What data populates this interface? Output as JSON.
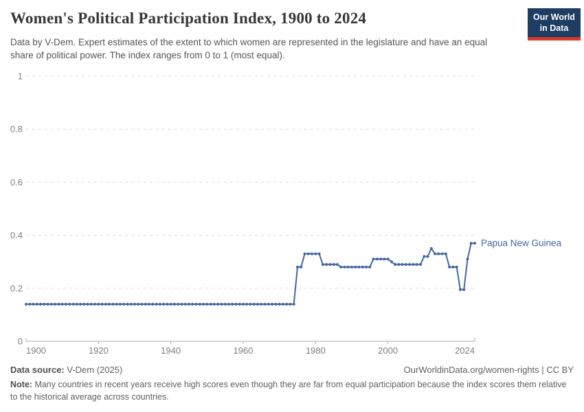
{
  "header": {
    "title": "Women's Political Participation Index, 1900 to 2024",
    "subtitle": "Data by V-Dem. Expert estimates of the extent to which women are represented in the legislature and have an equal share of political power. The index ranges from 0 to 1 (most equal).",
    "logo_line1": "Our World",
    "logo_line2": "in Data",
    "logo_bg_color": "#1d3d63",
    "logo_accent_color": "#d93a2d"
  },
  "chart_data": {
    "type": "line",
    "title": "Women's Political Participation Index, 1900 to 2024",
    "xlabel": "",
    "ylabel": "",
    "xlim": [
      1900,
      2024
    ],
    "ylim": [
      0,
      1
    ],
    "x_ticks": [
      1900,
      1920,
      1940,
      1960,
      1980,
      2000,
      2024
    ],
    "y_ticks": [
      0,
      0.2,
      0.4,
      0.6,
      0.8,
      1
    ],
    "grid": "horizontal-dashed",
    "legend_position": "end-of-line-label",
    "line_color": "#4266a5",
    "grid_color": "#dcdcdc",
    "axis_color": "#a9a9a9",
    "tick_label_color": "#7e7e7e",
    "series": [
      {
        "name": "Papua New Guinea",
        "x": [
          1900,
          1901,
          1902,
          1903,
          1904,
          1905,
          1906,
          1907,
          1908,
          1909,
          1910,
          1911,
          1912,
          1913,
          1914,
          1915,
          1916,
          1917,
          1918,
          1919,
          1920,
          1921,
          1922,
          1923,
          1924,
          1925,
          1926,
          1927,
          1928,
          1929,
          1930,
          1931,
          1932,
          1933,
          1934,
          1935,
          1936,
          1937,
          1938,
          1939,
          1940,
          1941,
          1942,
          1943,
          1944,
          1945,
          1946,
          1947,
          1948,
          1949,
          1950,
          1951,
          1952,
          1953,
          1954,
          1955,
          1956,
          1957,
          1958,
          1959,
          1960,
          1961,
          1962,
          1963,
          1964,
          1965,
          1966,
          1967,
          1968,
          1969,
          1970,
          1971,
          1972,
          1973,
          1974,
          1975,
          1976,
          1977,
          1978,
          1979,
          1980,
          1981,
          1982,
          1983,
          1984,
          1985,
          1986,
          1987,
          1988,
          1989,
          1990,
          1991,
          1992,
          1993,
          1994,
          1995,
          1996,
          1997,
          1998,
          1999,
          2000,
          2001,
          2002,
          2003,
          2004,
          2005,
          2006,
          2007,
          2008,
          2009,
          2010,
          2011,
          2012,
          2013,
          2014,
          2015,
          2016,
          2017,
          2018,
          2019,
          2020,
          2021,
          2022,
          2023,
          2024
        ],
        "values": [
          0.14,
          0.14,
          0.14,
          0.14,
          0.14,
          0.14,
          0.14,
          0.14,
          0.14,
          0.14,
          0.14,
          0.14,
          0.14,
          0.14,
          0.14,
          0.14,
          0.14,
          0.14,
          0.14,
          0.14,
          0.14,
          0.14,
          0.14,
          0.14,
          0.14,
          0.14,
          0.14,
          0.14,
          0.14,
          0.14,
          0.14,
          0.14,
          0.14,
          0.14,
          0.14,
          0.14,
          0.14,
          0.14,
          0.14,
          0.14,
          0.14,
          0.14,
          0.14,
          0.14,
          0.14,
          0.14,
          0.14,
          0.14,
          0.14,
          0.14,
          0.14,
          0.14,
          0.14,
          0.14,
          0.14,
          0.14,
          0.14,
          0.14,
          0.14,
          0.14,
          0.14,
          0.14,
          0.14,
          0.14,
          0.14,
          0.14,
          0.14,
          0.14,
          0.14,
          0.14,
          0.14,
          0.14,
          0.14,
          0.14,
          0.14,
          0.28,
          0.28,
          0.33,
          0.33,
          0.33,
          0.33,
          0.33,
          0.29,
          0.29,
          0.29,
          0.29,
          0.29,
          0.28,
          0.28,
          0.28,
          0.28,
          0.28,
          0.28,
          0.28,
          0.28,
          0.28,
          0.31,
          0.31,
          0.31,
          0.31,
          0.31,
          0.3,
          0.29,
          0.29,
          0.29,
          0.29,
          0.29,
          0.29,
          0.29,
          0.29,
          0.32,
          0.32,
          0.35,
          0.33,
          0.33,
          0.33,
          0.33,
          0.28,
          0.28,
          0.28,
          0.195,
          0.195,
          0.31,
          0.37,
          0.37
        ]
      }
    ]
  },
  "footer": {
    "data_source_label": "Data source:",
    "data_source_value": "V-Dem (2025)",
    "link_text": "OurWorldinData.org/women-rights | CC BY",
    "note_label": "Note:",
    "note_text": "Many countries in recent years receive high scores even though they are far from equal participation because the index scores them relative to the historical average across countries."
  }
}
